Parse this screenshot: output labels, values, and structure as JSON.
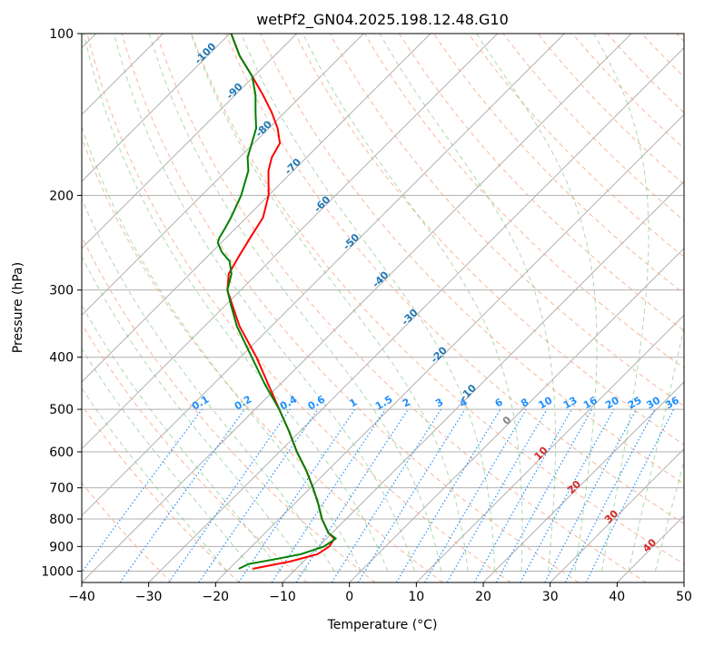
{
  "chart_data": {
    "type": "line",
    "title": "wetPf2_GN04.2025.198.12.48.G10",
    "xlabel": "Temperature (°C)",
    "ylabel": "Pressure (hPa)",
    "xlim": [
      -40,
      50
    ],
    "ylim": [
      1050,
      100
    ],
    "y_scale": "log",
    "grid": true,
    "x_ticks": [
      -40,
      -30,
      -20,
      -10,
      0,
      10,
      20,
      30,
      40,
      50
    ],
    "y_ticks": [
      100,
      200,
      300,
      400,
      500,
      600,
      700,
      800,
      900,
      1000
    ],
    "skew_angle_deg": 45,
    "series": [
      {
        "kind": "temperature",
        "color": "#ff0000",
        "pressure": [
          990,
          960,
          930,
          900,
          870,
          850,
          800,
          750,
          700,
          650,
          600,
          550,
          500,
          450,
          400,
          350,
          320,
          300,
          280,
          260,
          240,
          220,
          200,
          180,
          170,
          160,
          150,
          140,
          130,
          120,
          110,
          100
        ],
        "temperature": [
          -16.5,
          -12,
          -9,
          -8.4,
          -8.8,
          -10.5,
          -13.6,
          -16.4,
          -19.6,
          -23.2,
          -27.4,
          -31.6,
          -36.4,
          -41.7,
          -47.6,
          -54.8,
          -59,
          -62,
          -64.2,
          -65.3,
          -66.4,
          -67.5,
          -70,
          -73.7,
          -75.2,
          -76.1,
          -78.7,
          -82,
          -85.9,
          -90.3,
          -95.2,
          -99.8
        ]
      },
      {
        "kind": "dewpoint",
        "color": "#008000",
        "pressure": [
          990,
          970,
          950,
          930,
          900,
          870,
          850,
          800,
          750,
          700,
          650,
          600,
          550,
          500,
          450,
          400,
          350,
          320,
          300,
          280,
          265,
          255,
          245,
          240,
          230,
          220,
          200,
          180,
          170,
          160,
          150,
          140,
          130,
          120,
          110,
          100
        ],
        "temperature": [
          -18.6,
          -17.8,
          -14.5,
          -11.5,
          -9.2,
          -8.6,
          -10.5,
          -13.6,
          -16.4,
          -19.6,
          -23.2,
          -27.4,
          -31.6,
          -36.4,
          -42.2,
          -48.3,
          -55.2,
          -59.2,
          -62,
          -63.8,
          -66,
          -68.5,
          -70.5,
          -71,
          -71.6,
          -72.3,
          -74.1,
          -76.7,
          -78.8,
          -80.3,
          -81.9,
          -84.4,
          -87,
          -90.3,
          -95.2,
          -99.8
        ]
      }
    ],
    "dry_adiabats": {
      "color": "#f4a582",
      "labels": [
        "-100",
        "-90",
        "-80",
        "-70",
        "-60",
        "-50",
        "-40",
        "-30",
        "-20",
        "-10"
      ]
    },
    "moist_adiabats": {
      "color": "#66bb66",
      "labels": [
        "0",
        "10",
        "20",
        "30",
        "40"
      ]
    },
    "mixing_ratio": {
      "color": "#1e90ff",
      "values": [
        0.1,
        0.2,
        0.4,
        0.6,
        1,
        1.5,
        2,
        3,
        4,
        6,
        8,
        10,
        13,
        16,
        20,
        25,
        30,
        36
      ],
      "labels": [
        "0.1",
        "0.2",
        "0.4",
        "0.6",
        "1",
        "1.5",
        "2",
        "3",
        "4",
        "6",
        "8",
        "10",
        "13",
        "16",
        "20",
        "25",
        "30",
        "36"
      ]
    }
  }
}
